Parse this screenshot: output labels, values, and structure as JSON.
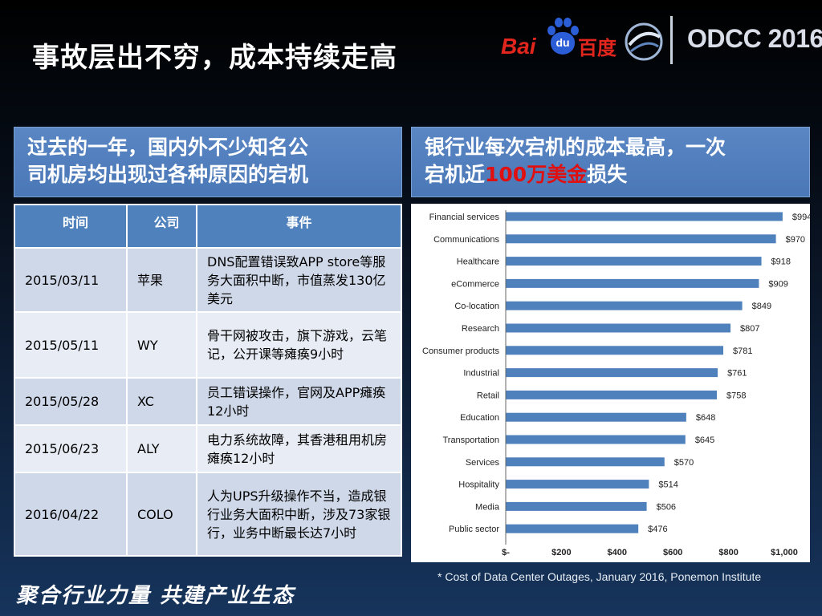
{
  "slide": {
    "title": "事故层出不穷，成本持续走高",
    "slogan": "聚合行业力量  共建产业生态",
    "source_note": "* Cost of Data Center Outages, January 2016, Ponemon Institute"
  },
  "logos": {
    "baidu_text": "Bai",
    "baidu_paw_text": "du",
    "baidu_cn": "百度",
    "odcc": "ODCC 2016"
  },
  "left_panel": {
    "heading_line1": "过去的一年，国内外不少知名公",
    "heading_line2": "司机房均出现过各种原因的宕机"
  },
  "right_panel": {
    "heading_line1": "银行业每次宕机的成本最高，一次",
    "heading_line2_pre": "宕机近",
    "heading_line2_highlight": "100万美金",
    "heading_line2_post": "损失",
    "highlight_color": "#e01010"
  },
  "table": {
    "headers": [
      "时间",
      "公司",
      "事件"
    ],
    "rows": [
      {
        "date": "2015/03/11",
        "company": "苹果",
        "event": "DNS配置错误致APP store等服务大面积中断，市值蒸发130亿美元"
      },
      {
        "date": "2015/05/11",
        "company": "WY",
        "event": "骨干网被攻击，旗下游戏，云笔记，公开课等瘫痪9小时"
      },
      {
        "date": "2015/05/28",
        "company": "XC",
        "event": "员工错误操作，官网及APP瘫痪12小时"
      },
      {
        "date": "2015/06/23",
        "company": "ALY",
        "event": "电力系统故障，其香港租用机房瘫痪12小时"
      },
      {
        "date": "2016/04/22",
        "company": "COLO",
        "event": "人为UPS升级操作不当，造成银行业务大面积中断，涉及73家银行，业务中断最长达7小时"
      }
    ]
  },
  "chart_data": {
    "type": "bar",
    "orientation": "horizontal",
    "categories": [
      "Financial services",
      "Communications",
      "Healthcare",
      "eCommerce",
      "Co-location",
      "Research",
      "Consumer products",
      "Industrial",
      "Retail",
      "Education",
      "Transportation",
      "Services",
      "Hospitality",
      "Media",
      "Public sector"
    ],
    "values": [
      994,
      970,
      918,
      909,
      849,
      807,
      781,
      761,
      758,
      648,
      645,
      570,
      514,
      506,
      476
    ],
    "value_labels": [
      "$994",
      "$970",
      "$918",
      "$909",
      "$849",
      "$807",
      "$781",
      "$761",
      "$758",
      "$648",
      "$645",
      "$570",
      "$514",
      "$506",
      "$476"
    ],
    "xlim": [
      0,
      1000
    ],
    "x_ticks": [
      0,
      200,
      400,
      600,
      800,
      1000
    ],
    "x_tick_labels": [
      "$-",
      "$200",
      "$400",
      "$600",
      "$800",
      "$1,000"
    ],
    "bar_color": "#4f81bd",
    "grid": false
  }
}
